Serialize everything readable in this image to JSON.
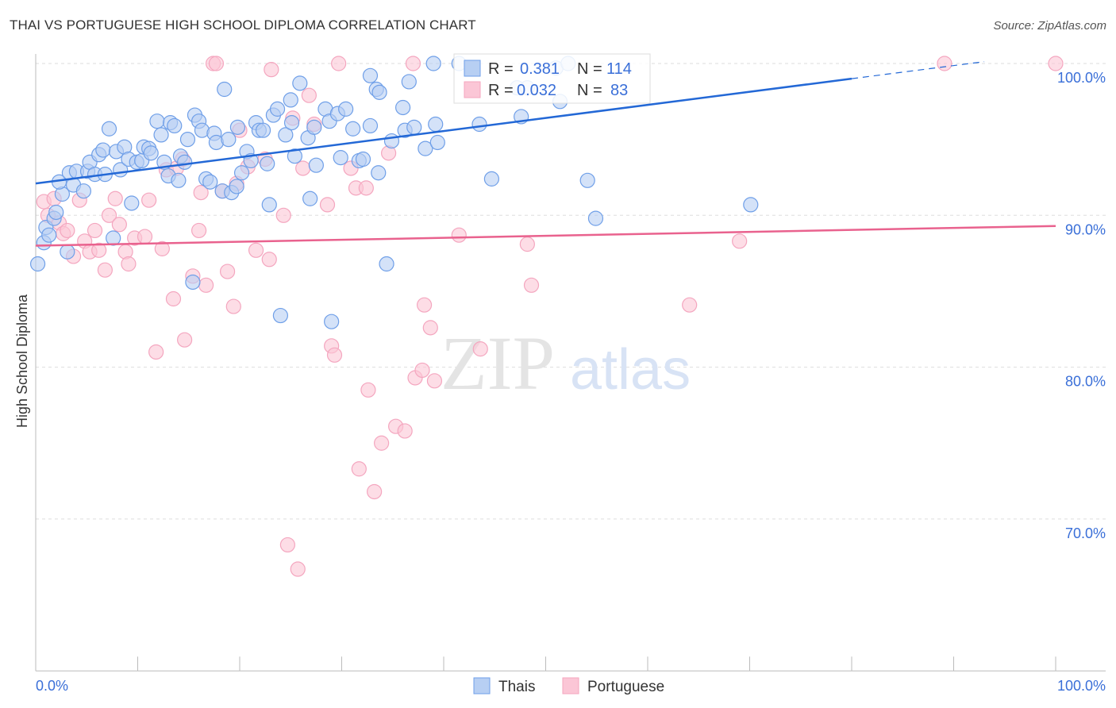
{
  "title": "THAI VS PORTUGUESE HIGH SCHOOL DIPLOMA CORRELATION CHART",
  "source": "Source: ZipAtlas.com",
  "watermark": "ZIPatlas",
  "colors": {
    "thais": "#6f9fe8",
    "thais_line": "#2368d6",
    "portuguese": "#f4a6bf",
    "portuguese_line": "#e9628e",
    "axis_label": "#3a6fd8"
  },
  "chart_data": {
    "type": "scatter",
    "title": "THAI VS PORTUGUESE HIGH SCHOOL DIPLOMA CORRELATION CHART",
    "xlabel": "",
    "ylabel": "High School Diploma",
    "xlim": [
      0,
      105
    ],
    "ylim": [
      60,
      100.6
    ],
    "x_tick_labels": [
      "0.0%",
      "100.0%"
    ],
    "y_ticks": [
      100,
      90,
      80,
      70
    ],
    "y_tick_labels": [
      "100.0%",
      "90.0%",
      "80.0%",
      "70.0%"
    ],
    "grid": true,
    "legend": {
      "placement": "top-center",
      "rows": [
        {
          "r_label": "R =",
          "r": "0.381",
          "n_label": "N =",
          "n": "114"
        },
        {
          "r_label": "R =",
          "r": "0.032",
          "n_label": "N =",
          "n": "83"
        }
      ]
    },
    "bottom_legend": [
      "Thais",
      "Portuguese"
    ],
    "series": [
      {
        "name": "Thais",
        "trend": {
          "x0": 0,
          "y0": 92.1,
          "x1": 80,
          "y1": 99.0,
          "dashed_to_x": 93
        },
        "points": [
          [
            0.2,
            86.8
          ],
          [
            0.8,
            88.2
          ],
          [
            1.0,
            89.2
          ],
          [
            1.3,
            88.7
          ],
          [
            1.8,
            89.8
          ],
          [
            2.0,
            90.2
          ],
          [
            2.6,
            91.4
          ],
          [
            3.1,
            87.6
          ],
          [
            2.3,
            92.2
          ],
          [
            3.3,
            92.8
          ],
          [
            3.7,
            92.0
          ],
          [
            4.0,
            92.9
          ],
          [
            4.7,
            91.6
          ],
          [
            5.1,
            92.9
          ],
          [
            5.3,
            93.5
          ],
          [
            5.8,
            92.7
          ],
          [
            6.2,
            94.0
          ],
          [
            6.6,
            94.3
          ],
          [
            6.8,
            92.7
          ],
          [
            7.2,
            95.7
          ],
          [
            7.6,
            88.5
          ],
          [
            7.9,
            94.2
          ],
          [
            8.3,
            93.0
          ],
          [
            8.7,
            94.5
          ],
          [
            9.1,
            93.7
          ],
          [
            9.4,
            90.8
          ],
          [
            9.9,
            93.5
          ],
          [
            10.4,
            93.6
          ],
          [
            10.6,
            94.5
          ],
          [
            11.1,
            94.4
          ],
          [
            11.3,
            94.1
          ],
          [
            11.9,
            96.2
          ],
          [
            12.3,
            95.3
          ],
          [
            12.6,
            93.5
          ],
          [
            13.0,
            92.6
          ],
          [
            13.2,
            96.1
          ],
          [
            13.6,
            95.9
          ],
          [
            14.0,
            92.3
          ],
          [
            14.2,
            93.9
          ],
          [
            14.6,
            93.5
          ],
          [
            14.9,
            95.0
          ],
          [
            15.4,
            85.6
          ],
          [
            15.6,
            96.6
          ],
          [
            16.0,
            96.2
          ],
          [
            16.3,
            95.6
          ],
          [
            16.7,
            92.4
          ],
          [
            17.1,
            92.2
          ],
          [
            17.5,
            95.4
          ],
          [
            17.7,
            94.8
          ],
          [
            18.3,
            91.6
          ],
          [
            18.5,
            98.3
          ],
          [
            18.9,
            95.0
          ],
          [
            19.2,
            91.5
          ],
          [
            19.7,
            91.9
          ],
          [
            19.8,
            95.8
          ],
          [
            20.2,
            92.8
          ],
          [
            20.7,
            94.2
          ],
          [
            21.1,
            93.6
          ],
          [
            21.6,
            96.1
          ],
          [
            21.9,
            95.6
          ],
          [
            22.3,
            95.6
          ],
          [
            22.7,
            93.4
          ],
          [
            22.9,
            90.7
          ],
          [
            23.3,
            96.6
          ],
          [
            23.7,
            97.0
          ],
          [
            24.0,
            83.4
          ],
          [
            24.5,
            95.3
          ],
          [
            25.0,
            97.6
          ],
          [
            25.1,
            96.1
          ],
          [
            25.4,
            93.9
          ],
          [
            25.9,
            98.7
          ],
          [
            26.7,
            95.1
          ],
          [
            26.9,
            91.1
          ],
          [
            27.3,
            95.8
          ],
          [
            27.5,
            93.3
          ],
          [
            28.4,
            97.0
          ],
          [
            28.8,
            96.2
          ],
          [
            29.0,
            83.0
          ],
          [
            29.6,
            96.7
          ],
          [
            29.9,
            93.8
          ],
          [
            30.4,
            97.0
          ],
          [
            31.1,
            95.7
          ],
          [
            31.7,
            93.6
          ],
          [
            32.1,
            93.7
          ],
          [
            32.8,
            95.9
          ],
          [
            32.8,
            99.2
          ],
          [
            33.4,
            98.3
          ],
          [
            33.7,
            98.1
          ],
          [
            33.6,
            92.8
          ],
          [
            34.4,
            86.8
          ],
          [
            34.9,
            94.9
          ],
          [
            36.0,
            97.1
          ],
          [
            36.2,
            95.6
          ],
          [
            36.6,
            98.8
          ],
          [
            37.1,
            95.8
          ],
          [
            38.2,
            94.4
          ],
          [
            39.0,
            100.0
          ],
          [
            39.2,
            96.0
          ],
          [
            39.4,
            94.8
          ],
          [
            41.5,
            100.0
          ],
          [
            42.8,
            99.7
          ],
          [
            43.5,
            96.0
          ],
          [
            44.7,
            92.4
          ],
          [
            47.2,
            98.4
          ],
          [
            47.6,
            96.5
          ],
          [
            48.2,
            98.4
          ],
          [
            51.0,
            99.7
          ],
          [
            51.4,
            97.5
          ],
          [
            52.2,
            100.0
          ],
          [
            54.1,
            92.3
          ],
          [
            54.9,
            89.8
          ],
          [
            70.1,
            90.7
          ]
        ]
      },
      {
        "name": "Portuguese",
        "trend": {
          "x0": 0,
          "y0": 88.0,
          "x1": 100,
          "y1": 89.3
        },
        "points": [
          [
            0.8,
            90.9
          ],
          [
            1.2,
            90.0
          ],
          [
            1.8,
            91.1
          ],
          [
            2.3,
            89.5
          ],
          [
            2.7,
            88.8
          ],
          [
            3.1,
            89.0
          ],
          [
            3.7,
            87.3
          ],
          [
            4.3,
            91.0
          ],
          [
            4.8,
            88.3
          ],
          [
            5.3,
            87.6
          ],
          [
            5.8,
            89.0
          ],
          [
            6.2,
            87.7
          ],
          [
            6.8,
            86.4
          ],
          [
            7.2,
            90.0
          ],
          [
            7.8,
            91.1
          ],
          [
            8.2,
            89.4
          ],
          [
            8.8,
            87.6
          ],
          [
            9.1,
            86.8
          ],
          [
            9.7,
            88.5
          ],
          [
            10.7,
            88.6
          ],
          [
            11.1,
            91.0
          ],
          [
            11.8,
            81.0
          ],
          [
            12.4,
            87.8
          ],
          [
            12.8,
            93.0
          ],
          [
            13.5,
            84.5
          ],
          [
            13.8,
            93.1
          ],
          [
            14.4,
            93.7
          ],
          [
            14.6,
            81.8
          ],
          [
            15.4,
            86.0
          ],
          [
            16.0,
            89.0
          ],
          [
            16.2,
            91.5
          ],
          [
            16.7,
            85.4
          ],
          [
            17.4,
            100
          ],
          [
            17.7,
            100
          ],
          [
            18.3,
            91.6
          ],
          [
            18.8,
            86.3
          ],
          [
            19.4,
            84.0
          ],
          [
            19.7,
            92.1
          ],
          [
            20.0,
            95.6
          ],
          [
            20.8,
            93.2
          ],
          [
            21.6,
            87.7
          ],
          [
            22.5,
            93.7
          ],
          [
            22.9,
            87.1
          ],
          [
            23.1,
            99.6
          ],
          [
            24.3,
            90.0
          ],
          [
            24.7,
            68.3
          ],
          [
            25.2,
            96.4
          ],
          [
            25.7,
            66.7
          ],
          [
            26.2,
            93.1
          ],
          [
            26.8,
            97.9
          ],
          [
            27.3,
            96.0
          ],
          [
            28.6,
            90.7
          ],
          [
            29.0,
            81.4
          ],
          [
            29.3,
            80.8
          ],
          [
            29.7,
            100
          ],
          [
            30.9,
            93.1
          ],
          [
            31.4,
            91.8
          ],
          [
            31.7,
            73.3
          ],
          [
            32.4,
            91.8
          ],
          [
            32.6,
            78.5
          ],
          [
            33.2,
            71.8
          ],
          [
            33.9,
            75.0
          ],
          [
            34.6,
            94.1
          ],
          [
            35.3,
            76.1
          ],
          [
            36.2,
            75.8
          ],
          [
            37.0,
            100
          ],
          [
            37.2,
            79.3
          ],
          [
            37.9,
            79.8
          ],
          [
            38.1,
            84.1
          ],
          [
            38.7,
            82.6
          ],
          [
            39.1,
            79.1
          ],
          [
            41.5,
            88.7
          ],
          [
            43.6,
            81.2
          ],
          [
            48.2,
            88.1
          ],
          [
            48.6,
            85.4
          ],
          [
            64.1,
            84.1
          ],
          [
            69.0,
            88.3
          ],
          [
            89.1,
            100
          ],
          [
            100.0,
            100
          ]
        ]
      }
    ]
  }
}
